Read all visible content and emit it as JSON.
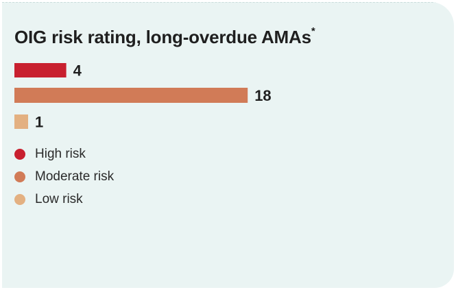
{
  "chart_data": {
    "type": "bar",
    "orientation": "horizontal",
    "title": "OIG risk rating, long-overdue AMAs*",
    "categories": [
      "High risk",
      "Moderate risk",
      "Low risk"
    ],
    "values": [
      4,
      18,
      1
    ],
    "value_labels": [
      "4",
      "18",
      "1"
    ],
    "colors": [
      "#c8202f",
      "#d17b57",
      "#e3b081"
    ],
    "legend": {
      "placement": "bottom-left",
      "entries": [
        {
          "label": "High risk",
          "color": "#c8202f"
        },
        {
          "label": "Moderate risk",
          "color": "#d17b57"
        },
        {
          "label": "Low risk",
          "color": "#e3b081"
        }
      ]
    },
    "grid": false,
    "axes_visible": false
  }
}
